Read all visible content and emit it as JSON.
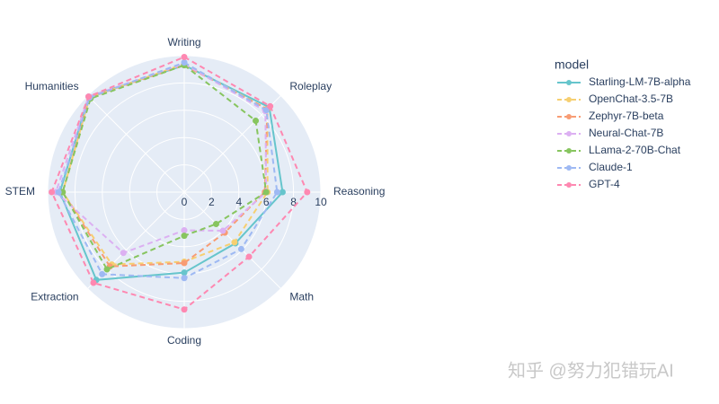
{
  "chart_data": {
    "type": "radar",
    "categories": [
      "Writing",
      "Roleplay",
      "Reasoning",
      "Math",
      "Coding",
      "Extraction",
      "STEM",
      "Humanities"
    ],
    "rlim": [
      0,
      10
    ],
    "rticks": [
      0,
      2,
      4,
      6,
      8,
      10
    ],
    "grid": true,
    "legend_title": "model",
    "legend_position": "right",
    "series": [
      {
        "name": "Starling-LM-7B-alpha",
        "color": "#66c5cc",
        "dash": false,
        "values": [
          9.3,
          8.8,
          7.2,
          5.3,
          5.9,
          9.1,
          9.1,
          9.9
        ]
      },
      {
        "name": "OpenChat-3.5-7B",
        "color": "#f6cf71",
        "dash": true,
        "values": [
          9.4,
          8.6,
          6.1,
          5.2,
          5.1,
          7.5,
          8.9,
          9.8
        ]
      },
      {
        "name": "Zephyr-7B-beta",
        "color": "#f89c74",
        "dash": true,
        "values": [
          9.3,
          8.6,
          5.9,
          4.2,
          5.2,
          7.7,
          8.9,
          9.8
        ]
      },
      {
        "name": "Neural-Chat-7B",
        "color": "#dcb0f2",
        "dash": true,
        "values": [
          9.4,
          8.4,
          6.0,
          4.0,
          2.8,
          6.3,
          9.4,
          9.9
        ]
      },
      {
        "name": "LLama-2-70B-Chat",
        "color": "#87c55f",
        "dash": true,
        "values": [
          9.3,
          7.4,
          6.0,
          3.3,
          3.2,
          8.0,
          8.9,
          9.7
        ]
      },
      {
        "name": "Claude-1",
        "color": "#9eb9f3",
        "dash": true,
        "values": [
          9.5,
          8.5,
          6.8,
          5.9,
          6.3,
          8.5,
          9.2,
          9.8
        ]
      },
      {
        "name": "GPT-4",
        "color": "#fe88b1",
        "dash": true,
        "values": [
          9.9,
          8.9,
          9.0,
          6.7,
          8.6,
          9.4,
          9.7,
          9.9
        ]
      }
    ]
  },
  "watermark": "知乎 @努力犯错玩AI"
}
